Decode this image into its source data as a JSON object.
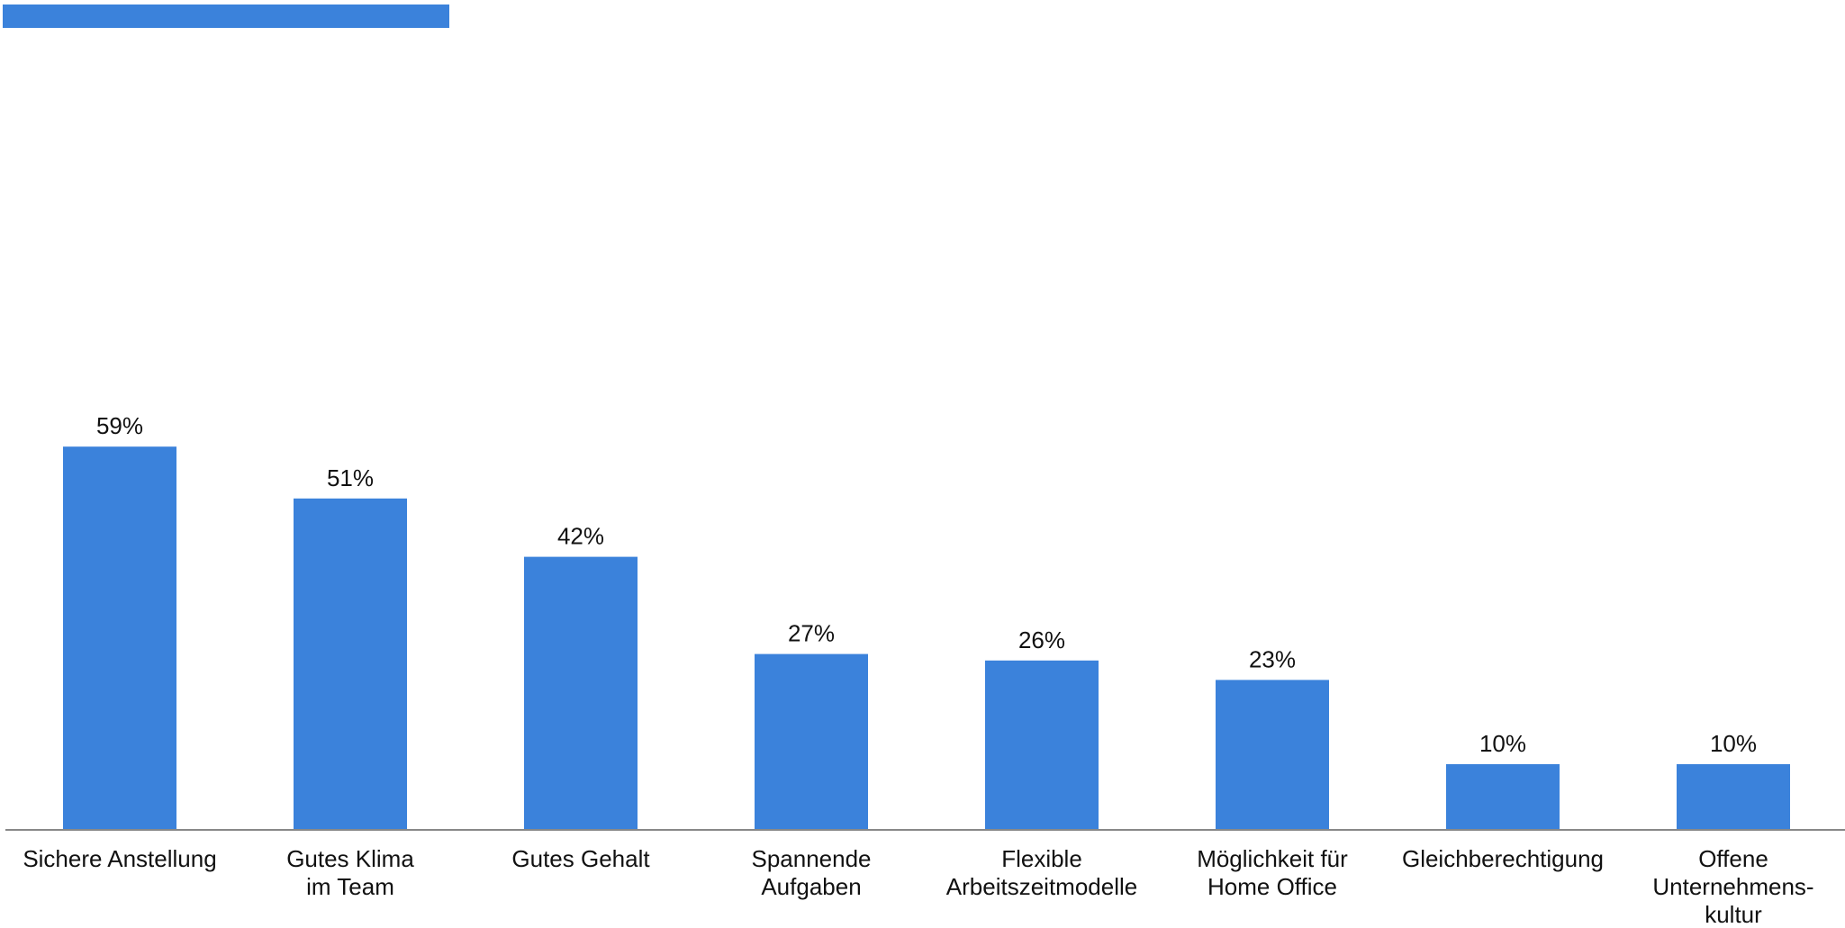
{
  "colors": {
    "accent": "#3b82db",
    "axis": "#888888",
    "text": "#111111"
  },
  "chart_data": {
    "type": "bar",
    "categories": [
      [
        "Sichere Anstellung"
      ],
      [
        "Gutes Klima",
        "im Team"
      ],
      [
        "Gutes Gehalt"
      ],
      [
        "Spannende",
        "Aufgaben"
      ],
      [
        "Flexible",
        "Arbeitszeitmodelle"
      ],
      [
        "Möglichkeit für",
        "Home Office"
      ],
      [
        "Gleichberechtigung"
      ],
      [
        "Offene",
        "Unternehmens-",
        "kultur"
      ]
    ],
    "values": [
      59,
      51,
      42,
      27,
      26,
      23,
      10,
      10
    ],
    "value_labels": [
      "59%",
      "51%",
      "42%",
      "27%",
      "26%",
      "23%",
      "10%",
      "10%"
    ],
    "unit": "%",
    "ylim": [
      0,
      100
    ],
    "grid": false,
    "legend": "none",
    "title": "",
    "xlabel": "",
    "ylabel": ""
  }
}
